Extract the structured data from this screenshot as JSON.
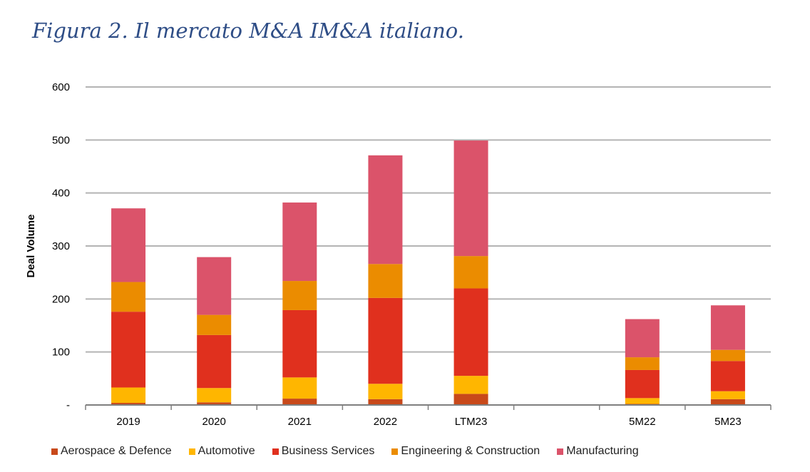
{
  "title": "Figura 2. Il mercato M&A IM&A italiano.",
  "chart_data": {
    "type": "bar",
    "stacked": true,
    "ylabel": "Deal Volume",
    "xlabel": "",
    "ylim": [
      0,
      600
    ],
    "yticks": [
      {
        "value": 600,
        "label": "600"
      },
      {
        "value": 500,
        "label": "500"
      },
      {
        "value": 400,
        "label": "400"
      },
      {
        "value": 300,
        "label": "300"
      },
      {
        "value": 200,
        "label": "200"
      },
      {
        "value": 100,
        "label": "100"
      },
      {
        "value": 0,
        "label": "-"
      }
    ],
    "categories": [
      "2019",
      "2020",
      "2021",
      "2022",
      "LTM23",
      "",
      "5M22",
      "5M23"
    ],
    "series": [
      {
        "name": "Aerospace & Defence",
        "color": "#c8491a",
        "values": [
          4,
          5,
          12,
          11,
          21,
          null,
          2,
          11
        ]
      },
      {
        "name": "Automotive",
        "color": "#ffb600",
        "values": [
          29,
          27,
          40,
          29,
          34,
          null,
          11,
          15
        ]
      },
      {
        "name": "Business Services",
        "color": "#e0301e",
        "values": [
          143,
          100,
          127,
          162,
          165,
          null,
          53,
          57
        ]
      },
      {
        "name": "Engineering & Construction",
        "color": "#eb8c00",
        "values": [
          56,
          38,
          55,
          64,
          61,
          null,
          24,
          21
        ]
      },
      {
        "name": "Manufacturing",
        "color": "#db536a",
        "values": [
          139,
          109,
          148,
          205,
          218,
          null,
          72,
          84
        ]
      }
    ],
    "legend_position": "bottom"
  }
}
